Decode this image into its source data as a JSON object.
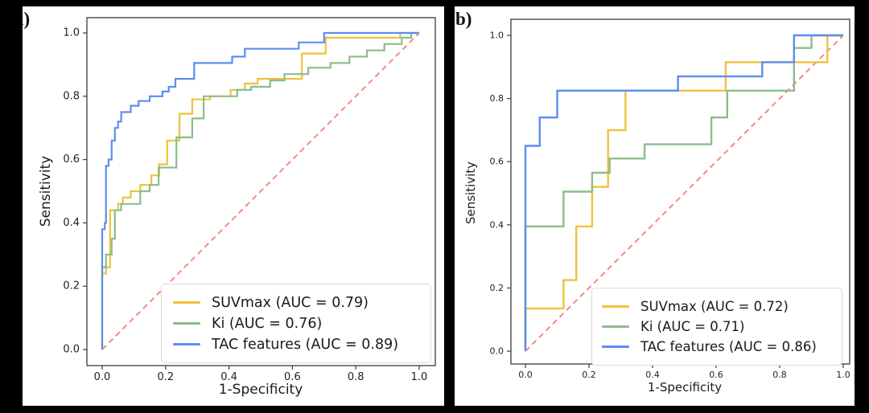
{
  "chart_data": [
    {
      "type": "line",
      "panel_label": "a)",
      "xlabel": "1-Specificity",
      "ylabel": "Sensitivity",
      "xticks": [
        "0.0",
        "0.2",
        "0.4",
        "0.6",
        "0.8",
        "1.0"
      ],
      "yticks": [
        "0.0",
        "0.2",
        "0.4",
        "0.6",
        "0.8",
        "1.0"
      ],
      "xlim": [
        0,
        1
      ],
      "ylim": [
        0,
        1
      ],
      "grid": false,
      "legend_position": "lower right",
      "diagonal": {
        "name": "chance-line",
        "style": "dashed",
        "color": "#F4837D",
        "points": [
          [
            0,
            0
          ],
          [
            1,
            1
          ]
        ]
      },
      "series": [
        {
          "key": "suvmax",
          "name": "SUVmax (AUC = 0.79)",
          "auc": 0.79,
          "color": "#EFC13D",
          "points": [
            [
              0,
              0
            ],
            [
              0,
              0.24
            ],
            [
              0.012,
              0.24
            ],
            [
              0.012,
              0.26
            ],
            [
              0.025,
              0.26
            ],
            [
              0.025,
              0.44
            ],
            [
              0.05,
              0.44
            ],
            [
              0.05,
              0.46
            ],
            [
              0.065,
              0.46
            ],
            [
              0.065,
              0.48
            ],
            [
              0.09,
              0.48
            ],
            [
              0.09,
              0.5
            ],
            [
              0.12,
              0.5
            ],
            [
              0.12,
              0.52
            ],
            [
              0.155,
              0.52
            ],
            [
              0.155,
              0.55
            ],
            [
              0.18,
              0.55
            ],
            [
              0.18,
              0.585
            ],
            [
              0.205,
              0.585
            ],
            [
              0.205,
              0.66
            ],
            [
              0.244,
              0.66
            ],
            [
              0.244,
              0.745
            ],
            [
              0.284,
              0.745
            ],
            [
              0.284,
              0.79
            ],
            [
              0.34,
              0.79
            ],
            [
              0.34,
              0.8
            ],
            [
              0.405,
              0.8
            ],
            [
              0.405,
              0.82
            ],
            [
              0.45,
              0.82
            ],
            [
              0.45,
              0.84
            ],
            [
              0.49,
              0.84
            ],
            [
              0.49,
              0.855
            ],
            [
              0.63,
              0.855
            ],
            [
              0.63,
              0.935
            ],
            [
              0.705,
              0.935
            ],
            [
              0.705,
              0.985
            ],
            [
              0.94,
              0.985
            ],
            [
              0.94,
              1
            ],
            [
              1,
              1
            ]
          ]
        },
        {
          "key": "ki",
          "name": "Ki (AUC = 0.76)",
          "auc": 0.76,
          "color": "#8CBD8A",
          "points": [
            [
              0,
              0
            ],
            [
              0,
              0.26
            ],
            [
              0.012,
              0.26
            ],
            [
              0.012,
              0.3
            ],
            [
              0.03,
              0.3
            ],
            [
              0.03,
              0.35
            ],
            [
              0.04,
              0.35
            ],
            [
              0.04,
              0.44
            ],
            [
              0.06,
              0.44
            ],
            [
              0.06,
              0.46
            ],
            [
              0.12,
              0.46
            ],
            [
              0.12,
              0.5
            ],
            [
              0.15,
              0.5
            ],
            [
              0.15,
              0.52
            ],
            [
              0.178,
              0.52
            ],
            [
              0.178,
              0.575
            ],
            [
              0.234,
              0.575
            ],
            [
              0.234,
              0.67
            ],
            [
              0.284,
              0.67
            ],
            [
              0.284,
              0.73
            ],
            [
              0.32,
              0.73
            ],
            [
              0.32,
              0.8
            ],
            [
              0.426,
              0.8
            ],
            [
              0.426,
              0.82
            ],
            [
              0.47,
              0.82
            ],
            [
              0.47,
              0.83
            ],
            [
              0.53,
              0.83
            ],
            [
              0.53,
              0.85
            ],
            [
              0.575,
              0.85
            ],
            [
              0.575,
              0.87
            ],
            [
              0.65,
              0.87
            ],
            [
              0.65,
              0.89
            ],
            [
              0.72,
              0.89
            ],
            [
              0.72,
              0.905
            ],
            [
              0.78,
              0.905
            ],
            [
              0.78,
              0.925
            ],
            [
              0.835,
              0.925
            ],
            [
              0.835,
              0.945
            ],
            [
              0.89,
              0.945
            ],
            [
              0.89,
              0.965
            ],
            [
              0.945,
              0.965
            ],
            [
              0.945,
              0.985
            ],
            [
              0.975,
              0.985
            ],
            [
              0.975,
              1
            ],
            [
              1,
              1
            ]
          ]
        },
        {
          "key": "tac",
          "name": "TAC features (AUC = 0.89)",
          "auc": 0.89,
          "color": "#5C8EF0",
          "points": [
            [
              0,
              0
            ],
            [
              0,
              0.38
            ],
            [
              0.008,
              0.38
            ],
            [
              0.008,
              0.4
            ],
            [
              0.012,
              0.4
            ],
            [
              0.012,
              0.58
            ],
            [
              0.02,
              0.58
            ],
            [
              0.02,
              0.6
            ],
            [
              0.03,
              0.6
            ],
            [
              0.03,
              0.66
            ],
            [
              0.04,
              0.66
            ],
            [
              0.04,
              0.7
            ],
            [
              0.05,
              0.7
            ],
            [
              0.05,
              0.72
            ],
            [
              0.06,
              0.72
            ],
            [
              0.06,
              0.75
            ],
            [
              0.09,
              0.75
            ],
            [
              0.09,
              0.77
            ],
            [
              0.115,
              0.77
            ],
            [
              0.115,
              0.785
            ],
            [
              0.15,
              0.785
            ],
            [
              0.15,
              0.8
            ],
            [
              0.19,
              0.8
            ],
            [
              0.19,
              0.815
            ],
            [
              0.21,
              0.815
            ],
            [
              0.21,
              0.83
            ],
            [
              0.231,
              0.83
            ],
            [
              0.231,
              0.855
            ],
            [
              0.29,
              0.855
            ],
            [
              0.29,
              0.905
            ],
            [
              0.41,
              0.905
            ],
            [
              0.41,
              0.925
            ],
            [
              0.45,
              0.925
            ],
            [
              0.45,
              0.95
            ],
            [
              0.62,
              0.95
            ],
            [
              0.62,
              0.97
            ],
            [
              0.7,
              0.97
            ],
            [
              0.7,
              1
            ],
            [
              1,
              1
            ]
          ]
        }
      ]
    },
    {
      "type": "line",
      "panel_label": "b)",
      "xlabel": "1-Specificity",
      "ylabel": "Sensitivity",
      "xticks": [
        "0.0",
        "0.2",
        "0.4",
        "0.6",
        "0.8",
        "1.0"
      ],
      "yticks": [
        "0.0",
        "0.2",
        "0.4",
        "0.6",
        "0.8",
        "1.0"
      ],
      "xlim": [
        0,
        1
      ],
      "ylim": [
        0,
        1
      ],
      "grid": false,
      "legend_position": "lower right",
      "diagonal": {
        "name": "chance-line",
        "style": "dashed",
        "color": "#F4837D",
        "points": [
          [
            0,
            0
          ],
          [
            1,
            1
          ]
        ]
      },
      "series": [
        {
          "key": "suvmax",
          "name": "SUVmax (AUC = 0.72)",
          "auc": 0.72,
          "color": "#EFC13D",
          "points": [
            [
              0,
              0
            ],
            [
              0,
              0.135
            ],
            [
              0.12,
              0.135
            ],
            [
              0.12,
              0.225
            ],
            [
              0.16,
              0.225
            ],
            [
              0.16,
              0.395
            ],
            [
              0.21,
              0.395
            ],
            [
              0.21,
              0.52
            ],
            [
              0.26,
              0.52
            ],
            [
              0.26,
              0.7
            ],
            [
              0.315,
              0.7
            ],
            [
              0.315,
              0.825
            ],
            [
              0.63,
              0.825
            ],
            [
              0.63,
              0.915
            ],
            [
              0.95,
              0.915
            ],
            [
              0.95,
              1
            ],
            [
              1,
              1
            ]
          ]
        },
        {
          "key": "ki",
          "name": "Ki (AUC = 0.71)",
          "auc": 0.71,
          "color": "#8CBD8A",
          "points": [
            [
              0,
              0
            ],
            [
              0,
              0.395
            ],
            [
              0.12,
              0.395
            ],
            [
              0.12,
              0.505
            ],
            [
              0.21,
              0.505
            ],
            [
              0.21,
              0.565
            ],
            [
              0.265,
              0.565
            ],
            [
              0.265,
              0.61
            ],
            [
              0.375,
              0.61
            ],
            [
              0.375,
              0.655
            ],
            [
              0.585,
              0.655
            ],
            [
              0.585,
              0.74
            ],
            [
              0.635,
              0.74
            ],
            [
              0.635,
              0.825
            ],
            [
              0.845,
              0.825
            ],
            [
              0.845,
              0.96
            ],
            [
              0.9,
              0.96
            ],
            [
              0.9,
              1
            ],
            [
              1,
              1
            ]
          ]
        },
        {
          "key": "tac",
          "name": "TAC features (AUC = 0.86)",
          "auc": 0.86,
          "color": "#5C8EF0",
          "points": [
            [
              0,
              0
            ],
            [
              0,
              0.65
            ],
            [
              0.045,
              0.65
            ],
            [
              0.045,
              0.74
            ],
            [
              0.1,
              0.74
            ],
            [
              0.1,
              0.825
            ],
            [
              0.48,
              0.825
            ],
            [
              0.48,
              0.87
            ],
            [
              0.745,
              0.87
            ],
            [
              0.745,
              0.915
            ],
            [
              0.845,
              0.915
            ],
            [
              0.845,
              1
            ],
            [
              1,
              1
            ]
          ]
        }
      ]
    }
  ]
}
